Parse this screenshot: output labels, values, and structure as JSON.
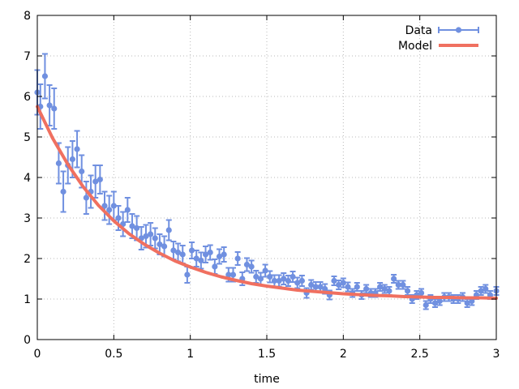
{
  "chart_data": {
    "type": "scatter",
    "title": "",
    "xlabel": "time",
    "ylabel": "",
    "xlim": [
      0,
      3
    ],
    "ylim": [
      0,
      8
    ],
    "xticks": [
      0,
      0.5,
      1,
      1.5,
      2,
      2.5,
      3
    ],
    "xtick_labels": [
      "0",
      "0.5",
      "1",
      "1.5",
      "2",
      "2.5",
      "3"
    ],
    "yticks": [
      0,
      1,
      2,
      3,
      4,
      5,
      6,
      7,
      8
    ],
    "ytick_labels": [
      "0",
      "1",
      "2",
      "3",
      "4",
      "5",
      "6",
      "7",
      "8"
    ],
    "grid": true,
    "legend_position": "top-right",
    "series": [
      {
        "name": "Data",
        "kind": "points-with-errorbars",
        "color": "#7090e0",
        "x": [
          0.0,
          0.02,
          0.05,
          0.08,
          0.11,
          0.14,
          0.17,
          0.2,
          0.23,
          0.26,
          0.29,
          0.32,
          0.35,
          0.38,
          0.41,
          0.44,
          0.47,
          0.5,
          0.53,
          0.56,
          0.59,
          0.62,
          0.65,
          0.68,
          0.71,
          0.74,
          0.77,
          0.8,
          0.83,
          0.86,
          0.89,
          0.92,
          0.95,
          0.98,
          1.01,
          1.04,
          1.07,
          1.1,
          1.13,
          1.16,
          1.19,
          1.22,
          1.25,
          1.28,
          1.31,
          1.34,
          1.37,
          1.4,
          1.43,
          1.46,
          1.49,
          1.52,
          1.55,
          1.58,
          1.61,
          1.64,
          1.67,
          1.7,
          1.73,
          1.76,
          1.79,
          1.82,
          1.85,
          1.88,
          1.91,
          1.94,
          1.97,
          2.0,
          2.03,
          2.06,
          2.09,
          2.12,
          2.15,
          2.18,
          2.21,
          2.24,
          2.27,
          2.3,
          2.33,
          2.36,
          2.39,
          2.42,
          2.45,
          2.48,
          2.51,
          2.54,
          2.57,
          2.6,
          2.63,
          2.66,
          2.69,
          2.72,
          2.75,
          2.78,
          2.81,
          2.84,
          2.87,
          2.9,
          2.93,
          2.96,
          3.0
        ],
        "y": [
          6.1,
          5.75,
          6.5,
          5.78,
          5.7,
          4.35,
          3.65,
          4.3,
          4.45,
          4.7,
          4.15,
          3.5,
          3.65,
          3.9,
          3.95,
          3.3,
          3.2,
          3.3,
          3.0,
          2.85,
          3.2,
          2.8,
          2.75,
          2.5,
          2.55,
          2.6,
          2.5,
          2.35,
          2.3,
          2.7,
          2.2,
          2.15,
          2.1,
          1.6,
          2.2,
          2.0,
          1.95,
          2.1,
          2.15,
          1.8,
          2.05,
          2.1,
          1.6,
          1.6,
          2.0,
          1.5,
          1.85,
          1.8,
          1.55,
          1.5,
          1.7,
          1.55,
          1.45,
          1.45,
          1.5,
          1.45,
          1.55,
          1.4,
          1.45,
          1.15,
          1.35,
          1.3,
          1.3,
          1.25,
          1.1,
          1.45,
          1.35,
          1.4,
          1.3,
          1.15,
          1.3,
          1.1,
          1.25,
          1.15,
          1.15,
          1.3,
          1.25,
          1.2,
          1.5,
          1.35,
          1.35,
          1.2,
          1.0,
          1.1,
          1.15,
          0.85,
          1.0,
          0.9,
          0.95,
          1.05,
          1.05,
          1.0,
          1.0,
          1.05,
          0.9,
          0.95,
          1.1,
          1.2,
          1.25,
          1.1,
          1.2
        ],
        "err": [
          0.55,
          0.55,
          0.55,
          0.5,
          0.5,
          0.5,
          0.5,
          0.45,
          0.45,
          0.45,
          0.4,
          0.4,
          0.4,
          0.4,
          0.35,
          0.35,
          0.35,
          0.35,
          0.3,
          0.3,
          0.3,
          0.3,
          0.3,
          0.28,
          0.28,
          0.28,
          0.25,
          0.25,
          0.25,
          0.25,
          0.22,
          0.22,
          0.22,
          0.2,
          0.2,
          0.2,
          0.2,
          0.2,
          0.18,
          0.18,
          0.18,
          0.18,
          0.17,
          0.17,
          0.16,
          0.16,
          0.16,
          0.15,
          0.15,
          0.15,
          0.15,
          0.14,
          0.14,
          0.14,
          0.14,
          0.13,
          0.13,
          0.13,
          0.13,
          0.12,
          0.12,
          0.12,
          0.12,
          0.12,
          0.11,
          0.11,
          0.11,
          0.11,
          0.11,
          0.1,
          0.1,
          0.1,
          0.1,
          0.1,
          0.1,
          0.1,
          0.1,
          0.1,
          0.1,
          0.1,
          0.1,
          0.1,
          0.1,
          0.1,
          0.1,
          0.1,
          0.1,
          0.1,
          0.1,
          0.1,
          0.1,
          0.1,
          0.1,
          0.1,
          0.1,
          0.1,
          0.1,
          0.1,
          0.1,
          0.1,
          0.1
        ]
      },
      {
        "name": "Model",
        "kind": "line",
        "color": "#f07060",
        "function": "y = 1 + 4.75 * exp(-1.8 * x)",
        "x": [
          0.0,
          0.1,
          0.2,
          0.3,
          0.4,
          0.5,
          0.6,
          0.7,
          0.8,
          0.9,
          1.0,
          1.1,
          1.2,
          1.3,
          1.4,
          1.5,
          1.6,
          1.7,
          1.8,
          1.9,
          2.0,
          2.1,
          2.2,
          2.3,
          2.4,
          2.5,
          2.6,
          2.7,
          2.8,
          2.9,
          3.0
        ],
        "y": [
          5.75,
          4.97,
          4.32,
          3.77,
          3.31,
          2.93,
          2.61,
          2.35,
          2.13,
          1.94,
          1.79,
          1.66,
          1.55,
          1.46,
          1.38,
          1.32,
          1.27,
          1.22,
          1.19,
          1.16,
          1.13,
          1.11,
          1.09,
          1.08,
          1.06,
          1.05,
          1.04,
          1.04,
          1.03,
          1.03,
          1.02
        ]
      }
    ],
    "legend": [
      {
        "label": "Data",
        "color": "#7090e0"
      },
      {
        "label": "Model",
        "color": "#f07060"
      }
    ]
  }
}
